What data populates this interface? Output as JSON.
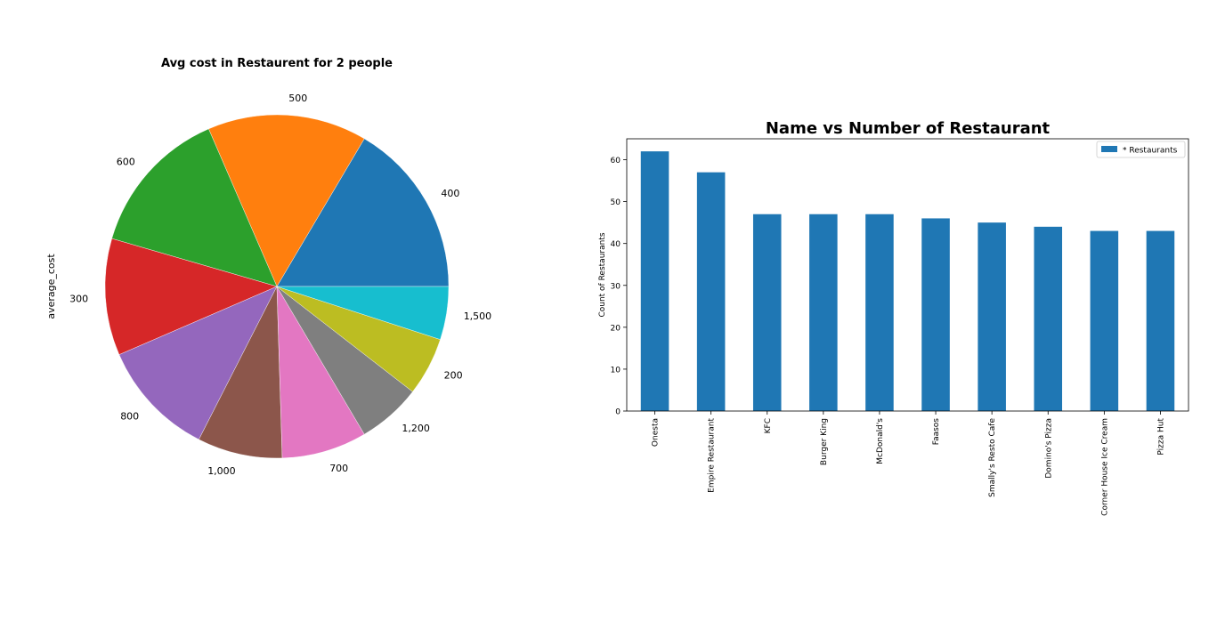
{
  "chart_data": [
    {
      "type": "pie",
      "title": "Avg cost in Restaurent for 2 people",
      "ylabel": "average_cost",
      "labels": [
        "400",
        "500",
        "600",
        "300",
        "800",
        "1,000",
        "700",
        "1,200",
        "200",
        "1,500"
      ],
      "values": [
        16.5,
        15.0,
        14.0,
        11.0,
        11.0,
        8.0,
        8.0,
        6.0,
        5.5,
        5.0
      ],
      "colors": [
        "#1f77b4",
        "#ff7f0e",
        "#2ca02c",
        "#d62728",
        "#9467bd",
        "#8c564b",
        "#e377c2",
        "#7f7f7f",
        "#bcbd22",
        "#17becf"
      ]
    },
    {
      "type": "bar",
      "title": "Name vs Number of Restaurant",
      "ylabel": "Count of Restaurants",
      "categories": [
        "Onesta",
        "Empire Restaurant",
        "KFC",
        "Burger King",
        "McDonald's",
        "Faasos",
        "Smally's Resto Cafe",
        "Domino's Pizza",
        "Corner House Ice Cream",
        "Pizza Hut"
      ],
      "series": [
        {
          "name": "* Restaurants",
          "values": [
            62,
            57,
            47,
            47,
            47,
            46,
            45,
            44,
            43,
            43
          ],
          "color": "#1f77b4"
        }
      ],
      "ylim": [
        0,
        65
      ],
      "yticks": [
        0,
        10,
        20,
        30,
        40,
        50,
        60
      ],
      "grid": false,
      "legend": "top-right"
    }
  ]
}
